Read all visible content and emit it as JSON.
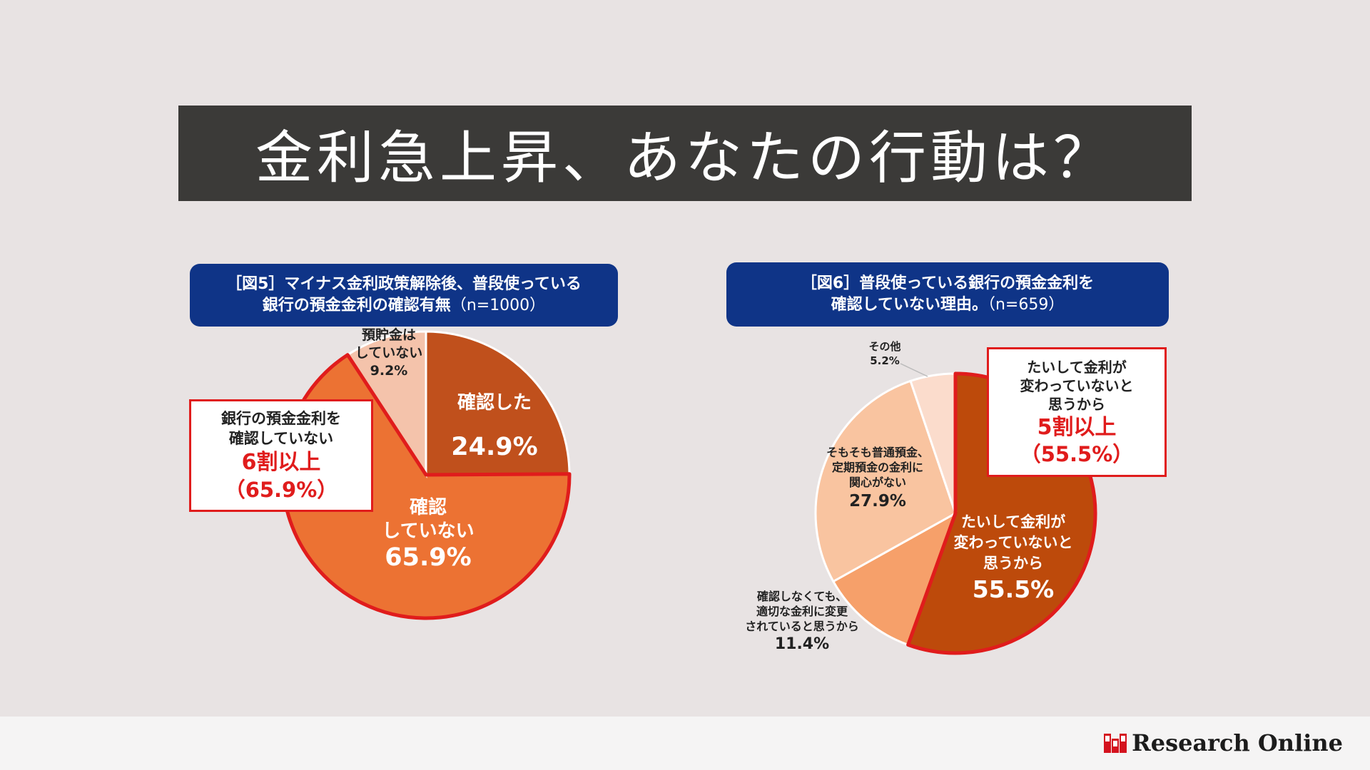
{
  "title": "金利急上昇、あなたの行動は？",
  "chart_data": [
    {
      "type": "pie",
      "title": "［図5］マイナス金利政策解除後、普段使っている",
      "title_line2": "銀行の預金金利の確認有無",
      "n_label": "（n=1000）",
      "slices": [
        {
          "label": "確認した",
          "value": 24.9,
          "value_text": "24.9%",
          "color": "#c0501c"
        },
        {
          "label": "確認\nしていない",
          "value": 65.9,
          "value_text": "65.9%",
          "color": "#ec7233"
        },
        {
          "label": "預貯金は\nしていない",
          "value": 9.2,
          "value_text": "9.2%",
          "color": "#f4c3ab"
        }
      ],
      "highlight": {
        "line1": "銀行の預金金利を",
        "line2": "確認していない",
        "big": "6割以上",
        "pct": "（65.9%）"
      }
    },
    {
      "type": "pie",
      "title": "［図6］普段使っている銀行の預金金利を",
      "title_line2": "確認していない理由。",
      "n_label": "（n=659）",
      "slices": [
        {
          "label": "たいして金利が\n変わっていないと\n思うから",
          "value": 55.5,
          "value_text": "55.5%",
          "color": "#bd4a0b"
        },
        {
          "label": "確認しなくても、\n適切な金利に変更\nされていると思うから",
          "value": 11.4,
          "value_text": "11.4%",
          "color": "#f6a06a"
        },
        {
          "label": "そもそも普通預金、\n定期預金の金利に\n関心がない",
          "value": 27.9,
          "value_text": "27.9%",
          "color": "#f9c4a0"
        },
        {
          "label": "その他",
          "value": 5.2,
          "value_text": "5.2%",
          "color": "#fbdccc"
        }
      ],
      "highlight": {
        "line1": "たいして金利が",
        "line2": "変わっていないと",
        "line3": "思うから",
        "big": "5割以上",
        "pct": "（55.5%）"
      }
    }
  ],
  "footer": {
    "brand": "Research Online",
    "brand_color": "#d4121e"
  }
}
